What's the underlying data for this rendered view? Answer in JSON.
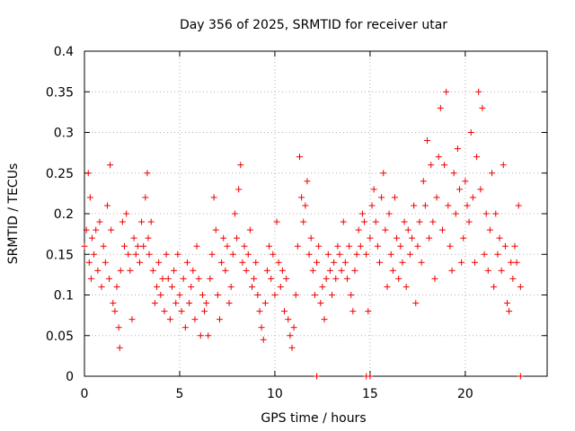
{
  "chart_data": {
    "type": "scatter",
    "title": "Day 356 of 2025, SRMTID for receiver utar",
    "xlabel": "GPS time / hours",
    "ylabel": "SRMTID / TECUs",
    "xlim": [
      0,
      24.3
    ],
    "ylim": [
      0,
      0.4
    ],
    "grid": true,
    "marker": "+",
    "color": "#ee0000",
    "x_ticks": [
      0,
      5,
      10,
      15,
      20
    ],
    "x_tick_labels": [
      "0",
      "5",
      "10",
      "15",
      "20"
    ],
    "y_ticks": [
      0,
      0.05,
      0.1,
      0.15,
      0.2,
      0.25,
      0.3,
      0.35,
      0.4
    ],
    "y_tick_labels": [
      "0",
      "0.05",
      "0.1",
      "0.15",
      "0.2",
      "0.25",
      "0.3",
      "0.35",
      "0.4"
    ],
    "series": [
      {
        "name": "SRMTID",
        "x": [
          0.0,
          0.1,
          0.2,
          0.25,
          0.3,
          0.35,
          0.4,
          0.5,
          0.6,
          0.7,
          0.8,
          0.9,
          1.0,
          1.1,
          1.2,
          1.3,
          1.35,
          1.4,
          1.5,
          1.6,
          1.7,
          1.8,
          1.85,
          1.9,
          2.0,
          2.1,
          2.2,
          2.3,
          2.4,
          2.5,
          2.6,
          2.7,
          2.8,
          2.9,
          3.0,
          3.1,
          3.2,
          3.3,
          3.35,
          3.4,
          3.5,
          3.6,
          3.7,
          3.8,
          3.9,
          4.0,
          4.1,
          4.2,
          4.3,
          4.4,
          4.5,
          4.6,
          4.7,
          4.8,
          4.9,
          5.0,
          5.1,
          5.2,
          5.3,
          5.4,
          5.5,
          5.6,
          5.7,
          5.8,
          5.9,
          6.0,
          6.1,
          6.2,
          6.3,
          6.4,
          6.5,
          6.6,
          6.7,
          6.8,
          6.9,
          7.0,
          7.1,
          7.2,
          7.3,
          7.4,
          7.5,
          7.6,
          7.7,
          7.8,
          7.9,
          8.0,
          8.1,
          8.2,
          8.3,
          8.4,
          8.5,
          8.6,
          8.7,
          8.8,
          8.9,
          9.0,
          9.1,
          9.2,
          9.3,
          9.4,
          9.5,
          9.6,
          9.7,
          9.8,
          9.9,
          10.0,
          10.1,
          10.2,
          10.3,
          10.4,
          10.5,
          10.6,
          10.7,
          10.8,
          10.9,
          11.0,
          11.1,
          11.2,
          11.3,
          11.4,
          11.5,
          11.6,
          11.7,
          11.8,
          11.9,
          12.0,
          12.1,
          12.2,
          12.3,
          12.4,
          12.5,
          12.6,
          12.7,
          12.8,
          12.9,
          13.0,
          13.1,
          13.2,
          13.3,
          13.4,
          13.5,
          13.6,
          13.7,
          13.8,
          13.9,
          14.0,
          14.1,
          14.2,
          14.3,
          14.4,
          14.5,
          14.6,
          14.7,
          14.8,
          14.9,
          15.0,
          15.1,
          15.2,
          15.3,
          15.4,
          15.5,
          15.6,
          15.7,
          15.8,
          15.9,
          16.0,
          16.1,
          16.2,
          16.3,
          16.4,
          16.5,
          16.6,
          16.7,
          16.8,
          16.9,
          17.0,
          17.1,
          17.2,
          17.3,
          17.4,
          17.5,
          17.6,
          17.7,
          17.8,
          17.9,
          18.0,
          18.1,
          18.2,
          18.3,
          18.4,
          18.5,
          18.6,
          18.7,
          18.8,
          18.9,
          19.0,
          19.1,
          19.2,
          19.3,
          19.4,
          19.5,
          19.6,
          19.7,
          19.8,
          19.9,
          20.0,
          20.1,
          20.2,
          20.3,
          20.4,
          20.5,
          20.6,
          20.7,
          20.8,
          20.9,
          21.0,
          21.1,
          21.2,
          21.3,
          21.4,
          21.5,
          21.6,
          21.7,
          21.8,
          21.9,
          22.0,
          22.1,
          22.2,
          22.3,
          22.4,
          22.5,
          22.6,
          22.7,
          22.8,
          22.9,
          12.2,
          14.8,
          15.0,
          22.9
        ],
        "y": [
          0.16,
          0.18,
          0.25,
          0.14,
          0.22,
          0.12,
          0.17,
          0.15,
          0.18,
          0.13,
          0.19,
          0.11,
          0.16,
          0.14,
          0.21,
          0.12,
          0.26,
          0.18,
          0.09,
          0.08,
          0.11,
          0.06,
          0.035,
          0.13,
          0.19,
          0.16,
          0.2,
          0.15,
          0.13,
          0.07,
          0.17,
          0.15,
          0.16,
          0.14,
          0.19,
          0.16,
          0.22,
          0.25,
          0.17,
          0.15,
          0.19,
          0.13,
          0.09,
          0.11,
          0.14,
          0.1,
          0.12,
          0.08,
          0.15,
          0.12,
          0.07,
          0.11,
          0.13,
          0.09,
          0.15,
          0.1,
          0.08,
          0.12,
          0.06,
          0.14,
          0.09,
          0.11,
          0.13,
          0.07,
          0.16,
          0.12,
          0.05,
          0.1,
          0.08,
          0.09,
          0.05,
          0.12,
          0.15,
          0.22,
          0.18,
          0.1,
          0.07,
          0.14,
          0.17,
          0.13,
          0.16,
          0.09,
          0.11,
          0.15,
          0.2,
          0.17,
          0.23,
          0.26,
          0.14,
          0.16,
          0.13,
          0.15,
          0.18,
          0.11,
          0.12,
          0.14,
          0.1,
          0.08,
          0.06,
          0.045,
          0.09,
          0.13,
          0.16,
          0.12,
          0.15,
          0.1,
          0.19,
          0.14,
          0.11,
          0.13,
          0.08,
          0.12,
          0.07,
          0.05,
          0.035,
          0.06,
          0.1,
          0.16,
          0.27,
          0.22,
          0.19,
          0.21,
          0.24,
          0.15,
          0.17,
          0.13,
          0.1,
          0.14,
          0.16,
          0.09,
          0.11,
          0.07,
          0.12,
          0.15,
          0.13,
          0.1,
          0.14,
          0.12,
          0.16,
          0.15,
          0.13,
          0.19,
          0.14,
          0.12,
          0.16,
          0.1,
          0.08,
          0.13,
          0.15,
          0.18,
          0.16,
          0.2,
          0.19,
          0.15,
          0.08,
          0.17,
          0.21,
          0.23,
          0.19,
          0.16,
          0.14,
          0.22,
          0.25,
          0.18,
          0.11,
          0.2,
          0.15,
          0.13,
          0.22,
          0.17,
          0.12,
          0.16,
          0.14,
          0.19,
          0.11,
          0.18,
          0.15,
          0.17,
          0.21,
          0.09,
          0.16,
          0.19,
          0.14,
          0.24,
          0.21,
          0.29,
          0.17,
          0.26,
          0.19,
          0.12,
          0.22,
          0.27,
          0.33,
          0.18,
          0.26,
          0.35,
          0.21,
          0.16,
          0.13,
          0.25,
          0.2,
          0.28,
          0.23,
          0.14,
          0.17,
          0.24,
          0.21,
          0.19,
          0.3,
          0.22,
          0.14,
          0.27,
          0.35,
          0.23,
          0.33,
          0.15,
          0.2,
          0.13,
          0.18,
          0.25,
          0.11,
          0.2,
          0.15,
          0.17,
          0.13,
          0.26,
          0.16,
          0.09,
          0.08,
          0.14,
          0.12,
          0.16,
          0.14,
          0.21,
          0.11,
          0.0,
          0.0,
          0.0,
          0.0
        ]
      }
    ]
  }
}
